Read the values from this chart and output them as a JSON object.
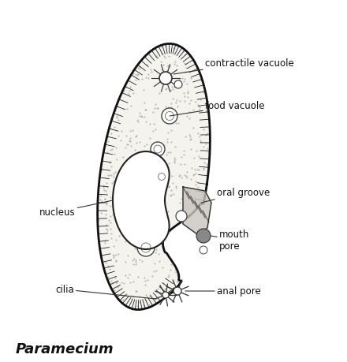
{
  "title": "Paramecium",
  "bg_color": "#ffffff",
  "body_color": "#f5f3ee",
  "body_edge_color": "#111111",
  "label_color": "#111111",
  "label_fontsize": 8.5,
  "title_fontsize": 13,
  "labels": {
    "contractile_vacuole": "contractile vacuole",
    "food_vacuole": "food vacuole",
    "oral_groove": "oral groove",
    "nucleus": "nucleus",
    "mouth_pore": "mouth\npore",
    "cilia": "cilia",
    "anal_pore": "anal pore"
  }
}
